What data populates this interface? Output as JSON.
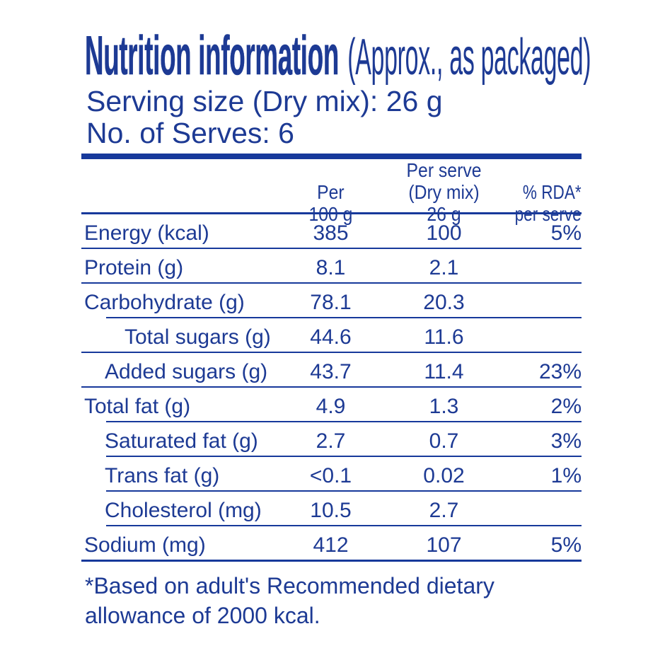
{
  "colors": {
    "text_blue": "#1d3a94",
    "rule_blue": "#17399b",
    "background": "#ffffff"
  },
  "header": {
    "title_bold": "Nutrition information",
    "title_note": "(Approx., as packaged)",
    "serving_size": "Serving size (Dry mix): 26 g",
    "servings": "No. of Serves: 6"
  },
  "table": {
    "columns": [
      {
        "line1": "Per",
        "line2": "100 g"
      },
      {
        "line1": "Per serve",
        "line2": "(Dry mix) 26 g"
      },
      {
        "line1": "% RDA*",
        "line2": "per serve"
      }
    ],
    "rows": [
      {
        "label": "Energy (kcal)",
        "indent": 0,
        "per100": "385",
        "perServe": "100",
        "rda": "5%",
        "rule": "full"
      },
      {
        "label": "Protein (g)",
        "indent": 0,
        "per100": "8.1",
        "perServe": "2.1",
        "rda": "",
        "rule": "full"
      },
      {
        "label": "Carbohydrate (g)",
        "indent": 0,
        "per100": "78.1",
        "perServe": "20.3",
        "rda": "",
        "rule": "indent"
      },
      {
        "label": "Total sugars (g)",
        "indent": 2,
        "per100": "44.6",
        "perServe": "11.6",
        "rda": "",
        "rule": "full"
      },
      {
        "label": "Added sugars (g)",
        "indent": 1,
        "per100": "43.7",
        "perServe": "11.4",
        "rda": "23%",
        "rule": "full"
      },
      {
        "label": "Total fat (g)",
        "indent": 0,
        "per100": "4.9",
        "perServe": "1.3",
        "rda": "2%",
        "rule": "indent"
      },
      {
        "label": "Saturated fat (g)",
        "indent": 1,
        "per100": "2.7",
        "perServe": "0.7",
        "rda": "3%",
        "rule": "indent"
      },
      {
        "label": "Trans fat (g)",
        "indent": 1,
        "per100": "<0.1",
        "perServe": "0.02",
        "rda": "1%",
        "rule": "indent"
      },
      {
        "label": "Cholesterol (mg)",
        "indent": 1,
        "per100": "10.5",
        "perServe": "2.7",
        "rda": "",
        "rule": "indent"
      },
      {
        "label": "Sodium (mg)",
        "indent": 0,
        "per100": "412",
        "perServe": "107",
        "rda": "5%",
        "rule": "bottom"
      }
    ]
  },
  "footnote": {
    "line1": "*Based on adult's Recommended dietary",
    "line2": "allowance of 2000 kcal."
  }
}
